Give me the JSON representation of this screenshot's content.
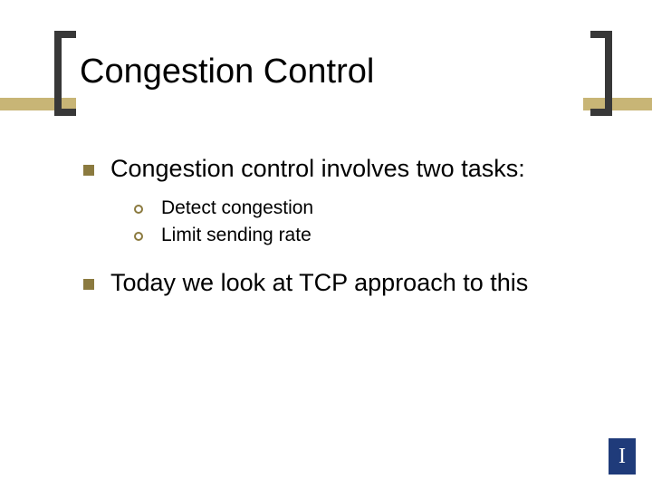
{
  "colors": {
    "stripe": "#c8b576",
    "bracket": "#383838",
    "bullet": "#8b7a3f",
    "logo_bg": "#1f3b7a",
    "logo_fg": "#ffffff",
    "text": "#000000",
    "background": "#ffffff"
  },
  "title": "Congestion Control",
  "bullets": [
    {
      "text": "Congestion control involves two tasks:",
      "sub": [
        "Detect congestion",
        "Limit sending rate"
      ]
    },
    {
      "text": " Today we look at TCP approach to this",
      "sub": []
    }
  ],
  "logo_letter": "I"
}
